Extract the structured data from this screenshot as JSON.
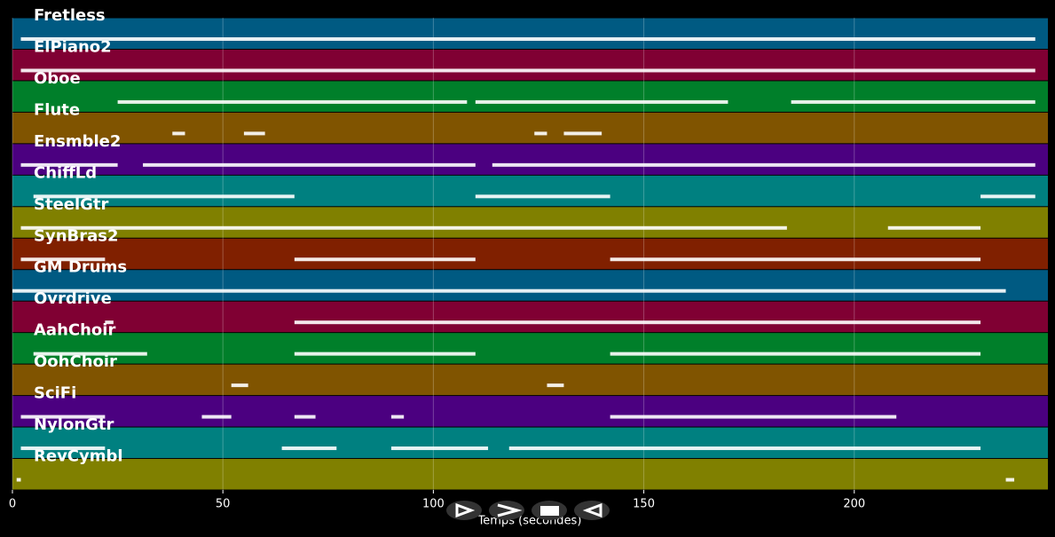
{
  "chart_data": {
    "type": "pianoroll",
    "xlabel": "Temps (secondes)",
    "xlim": [
      0,
      246
    ],
    "xticks": [
      0,
      50,
      100,
      150,
      200
    ],
    "grid": true,
    "tracks": [
      {
        "name": "Fretless",
        "color": "#005a82",
        "segments": [
          [
            2,
            243
          ]
        ]
      },
      {
        "name": "ElPiano2",
        "color": "#800033",
        "segments": [
          [
            2,
            243
          ]
        ]
      },
      {
        "name": "Oboe",
        "color": "#007f2a",
        "segments": [
          [
            25,
            108
          ],
          [
            110,
            170
          ],
          [
            185,
            243
          ]
        ]
      },
      {
        "name": "Flute",
        "color": "#805400",
        "segments": [
          [
            38,
            41
          ],
          [
            55,
            60
          ],
          [
            124,
            127
          ],
          [
            131,
            140
          ]
        ]
      },
      {
        "name": "Ensmble2",
        "color": "#4b0080",
        "segments": [
          [
            2,
            25
          ],
          [
            31,
            110
          ],
          [
            114,
            243
          ]
        ]
      },
      {
        "name": "ChiffLd",
        "color": "#008080",
        "segments": [
          [
            5,
            67
          ],
          [
            110,
            142
          ],
          [
            230,
            243
          ]
        ]
      },
      {
        "name": "SteelGtr",
        "color": "#808000",
        "segments": [
          [
            2,
            184
          ],
          [
            208,
            230
          ]
        ]
      },
      {
        "name": "SynBras2",
        "color": "#802000",
        "segments": [
          [
            2,
            22
          ],
          [
            67,
            110
          ],
          [
            142,
            230
          ]
        ]
      },
      {
        "name": "GM Drums",
        "color": "#005a82",
        "segments": [
          [
            0,
            236
          ]
        ]
      },
      {
        "name": "Ovrdrive",
        "color": "#800033",
        "segments": [
          [
            22,
            24
          ],
          [
            67,
            230
          ]
        ]
      },
      {
        "name": "AahChoir",
        "color": "#007f2a",
        "segments": [
          [
            5,
            32
          ],
          [
            67,
            110
          ],
          [
            142,
            230
          ]
        ]
      },
      {
        "name": "OohChoir",
        "color": "#805400",
        "segments": [
          [
            52,
            56
          ],
          [
            127,
            131
          ]
        ]
      },
      {
        "name": "SciFi",
        "color": "#4b0080",
        "segments": [
          [
            2,
            22
          ],
          [
            45,
            52
          ],
          [
            67,
            72
          ],
          [
            90,
            93
          ],
          [
            142,
            210
          ]
        ]
      },
      {
        "name": "NylonGtr",
        "color": "#008080",
        "segments": [
          [
            2,
            22
          ],
          [
            64,
            77
          ],
          [
            90,
            113
          ],
          [
            118,
            230
          ]
        ]
      },
      {
        "name": "RevCymbl",
        "color": "#808000",
        "segments": [
          [
            1,
            2
          ],
          [
            236,
            238
          ]
        ]
      }
    ]
  }
}
